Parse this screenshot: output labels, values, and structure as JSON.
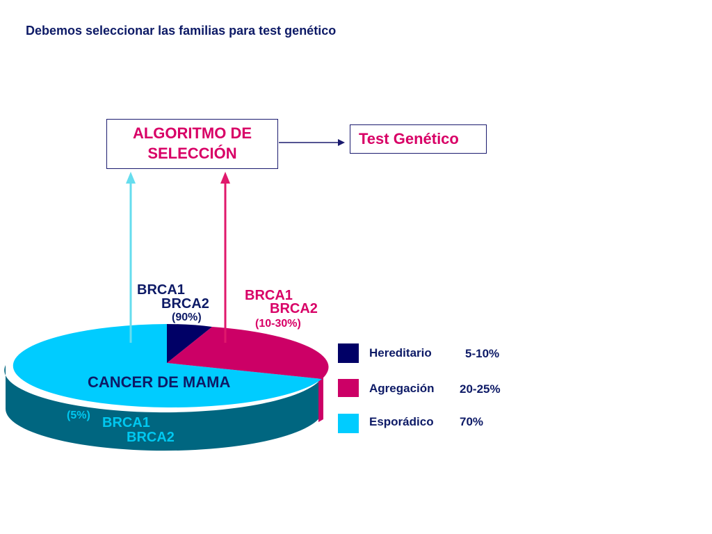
{
  "title": "Debemos seleccionar las familias para test genético",
  "algorithm_box": {
    "line1": "ALGORITMO DE",
    "line2": "SELECCIÓN"
  },
  "test_box": "Test Genético",
  "pie_label": "CANCER DE MAMA",
  "annotations": {
    "hereditary": {
      "line1": "BRCA1",
      "line2": "BRCA2",
      "pct": "(90%)"
    },
    "aggregation": {
      "line1": "BRCA1",
      "line2": "BRCA2",
      "pct": "(10-30%)"
    },
    "sporadic": {
      "pct": "(5%)",
      "line1": "BRCA1",
      "line2": "BRCA2"
    }
  },
  "legend": [
    {
      "label": "Hereditario",
      "value": "5-10%",
      "color": "#000066"
    },
    {
      "label": "Agregación",
      "value": "20-25%",
      "color": "#cc0066"
    },
    {
      "label": "Esporádico",
      "value": "70%",
      "color": "#00ccff"
    }
  ],
  "colors": {
    "navy": "#000066",
    "pink": "#cc0066",
    "cyan": "#00ccff",
    "cyan_side": "#006680",
    "pink_side": "#990044",
    "arrow_cyan": "#66ddee",
    "arrow_pink": "#e0186c"
  },
  "chart_data": {
    "type": "pie",
    "categories": [
      "Hereditario",
      "Agregación",
      "Esporádico"
    ],
    "values_label": [
      "5-10%",
      "20-25%",
      "70%"
    ],
    "values": [
      7.5,
      22.5,
      70
    ]
  }
}
